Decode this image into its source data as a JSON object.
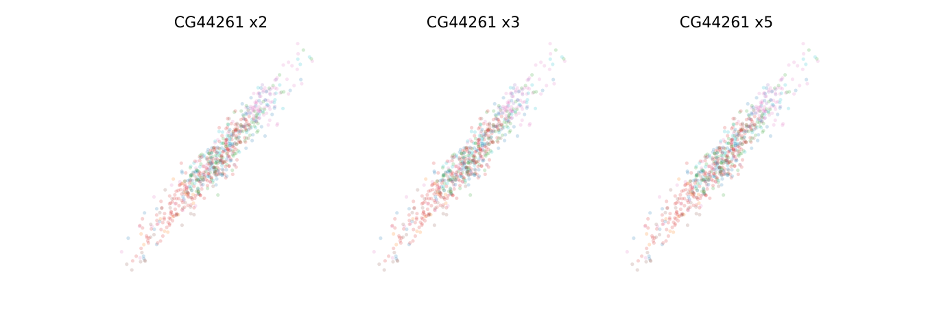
{
  "chart_data": [
    {
      "type": "scatter",
      "title": "CG44261 x2",
      "xlabel": "",
      "ylabel": "",
      "axes_visible": false,
      "grid": false,
      "legend": "none",
      "point_alpha": 0.2,
      "trend": {
        "x_range": [
          0.0,
          1.0
        ],
        "slope": 1.05,
        "intercept": -0.02
      }
    },
    {
      "type": "scatter",
      "title": "CG44261 x3",
      "xlabel": "",
      "ylabel": "",
      "axes_visible": false,
      "grid": false,
      "legend": "none",
      "point_alpha": 0.2,
      "trend": {
        "x_range": [
          0.0,
          1.0
        ],
        "slope": 1.05,
        "intercept": -0.02
      }
    },
    {
      "type": "scatter",
      "title": "CG44261 x5",
      "xlabel": "",
      "ylabel": "",
      "axes_visible": false,
      "grid": false,
      "legend": "none",
      "point_alpha": 0.2,
      "trend": {
        "x_range": [
          0.0,
          1.0
        ],
        "slope": 1.05,
        "intercept": -0.02
      }
    }
  ],
  "palette": [
    "#d62728",
    "#e377c2",
    "#2ca02c",
    "#1f77b4",
    "#17becf",
    "#8c564b",
    "#ff7f0e",
    "#bcbd22",
    "#9467bd"
  ]
}
